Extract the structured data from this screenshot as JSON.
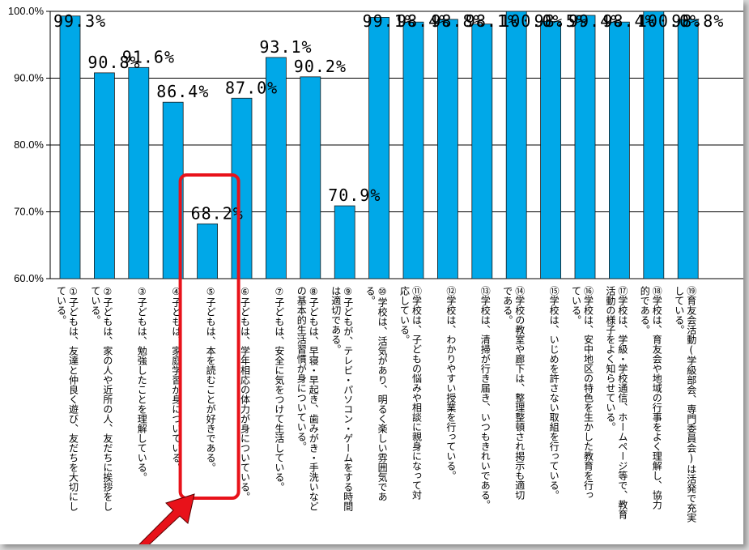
{
  "chart_data": {
    "type": "bar",
    "ylim": [
      60,
      100
    ],
    "yticks": [
      "100.0%",
      "90.0%",
      "80.0%",
      "70.0%",
      "60.0%"
    ],
    "ytick_values": [
      100,
      90,
      80,
      70,
      60
    ],
    "bar_color": "#00a8e8",
    "highlight_color": "#e8121a",
    "highlight_index": 4,
    "values": [
      99.3,
      90.8,
      91.6,
      86.4,
      68.2,
      87.0,
      93.1,
      90.2,
      70.9,
      99.1,
      98.4,
      98.8,
      98.1,
      100.0,
      98.5,
      99.4,
      98.4,
      100.0,
      98.8
    ],
    "value_labels": [
      "99.3%",
      "90.8%",
      "91.6%",
      "86.4%",
      "68.2%",
      "87.0%",
      "93.1%",
      "90.2%",
      "70.9%",
      "99.1%",
      "98.4%",
      "98.8%",
      "98.1%",
      "100.0%",
      "98.5%",
      "99.4%",
      "98.4%",
      "100.0%",
      "98.8%"
    ],
    "categories": [
      [
        "①子どもは、友達と仲良く遊び、友だちを大切にし",
        "ている。"
      ],
      [
        "②子どもは、家の人や近所の人、友だちに挨拶をし",
        "ている。"
      ],
      [
        "③子どもは、勉強したことを理解している。"
      ],
      [
        "④子どもは、家庭学習が身についている。"
      ],
      [
        "⑤子どもは、本を読むことが好きである。"
      ],
      [
        "⑥子どもは、学年相応の体力が身についている。"
      ],
      [
        "⑦子どもは、安全に気をつけて生活している。"
      ],
      [
        "⑧子どもは、早寝・早起き、歯みがき・手洗いなど",
        "の基本的生活習慣が身についている。"
      ],
      [
        "⑨子どもが、テレビ・パソコン・ゲームをする時間",
        "は適切である。"
      ],
      [
        "⑩学校は、活気があり、明るく楽しい雰囲気であ",
        "る。"
      ],
      [
        "⑪学校は、子どもの悩みや相談に親身になって対",
        "応している。"
      ],
      [
        "⑫学校は、わかりやすい授業を行っている。"
      ],
      [
        "⑬学校は、清掃が行き届き、いつもきれいである。"
      ],
      [
        "⑭学校の教室や廊下は、整理整頓され掲示も適切",
        "である。"
      ],
      [
        "⑮学校は、いじめを許さない取組を行っている。"
      ],
      [
        "⑯学校は、安中地区の特色を生かした教育を行っ",
        "ている。"
      ],
      [
        "⑰学校は、学級・学校通信、ホームページ等で、教育",
        "活動の様子をよく知らせている。"
      ],
      [
        "⑱学校は、育友会や地域の行事をよく理解し、協力",
        "的である。"
      ],
      [
        "⑲育友会活動(学級部会、専門委員会)は活発で充実",
        "している。"
      ]
    ]
  }
}
